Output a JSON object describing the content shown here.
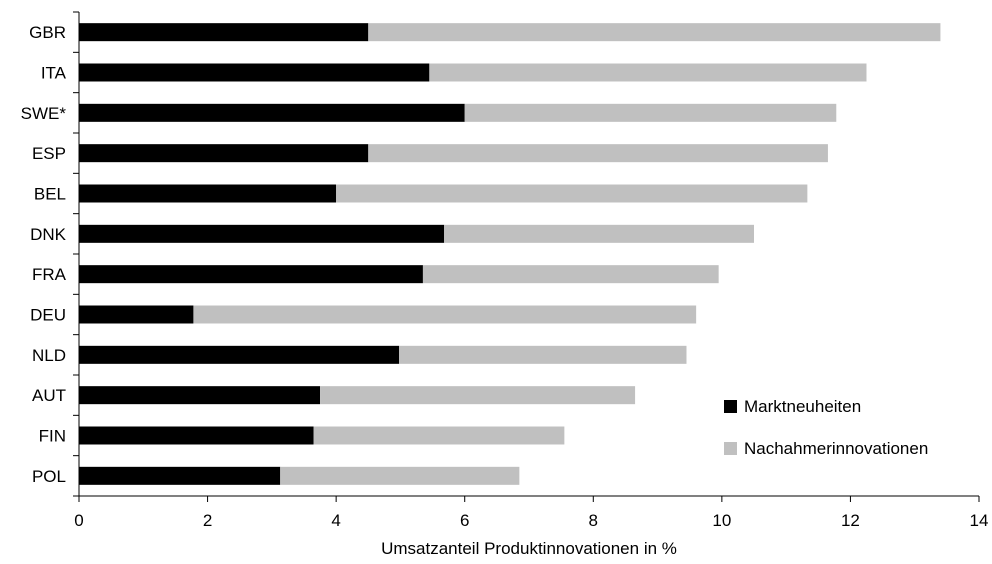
{
  "chart_data": {
    "type": "bar",
    "orientation": "horizontal",
    "stacked": true,
    "categories": [
      "GBR",
      "ITA",
      "SWE*",
      "ESP",
      "BEL",
      "DNK",
      "FRA",
      "DEU",
      "NLD",
      "AUT",
      "FIN",
      "POL"
    ],
    "series": [
      {
        "name": "Marktneuheiten",
        "color": "#000000",
        "values": [
          4.5,
          5.45,
          6.0,
          4.5,
          4.0,
          5.68,
          5.35,
          1.78,
          4.98,
          3.75,
          3.65,
          3.13
        ]
      },
      {
        "name": "Nachahmerinnovationen",
        "color": "#c0c0c0",
        "values": [
          8.9,
          6.8,
          5.78,
          7.15,
          7.33,
          4.82,
          4.6,
          7.82,
          4.47,
          4.9,
          3.9,
          3.72
        ]
      }
    ],
    "xlabel": "Umsatzanteil Produktinnovationen in %",
    "ylabel": "",
    "xlim": [
      0,
      14
    ],
    "xticks": [
      "0",
      "2",
      "4",
      "6",
      "8",
      "10",
      "12",
      "14"
    ],
    "grid": false,
    "legend_position": "lower-right"
  }
}
